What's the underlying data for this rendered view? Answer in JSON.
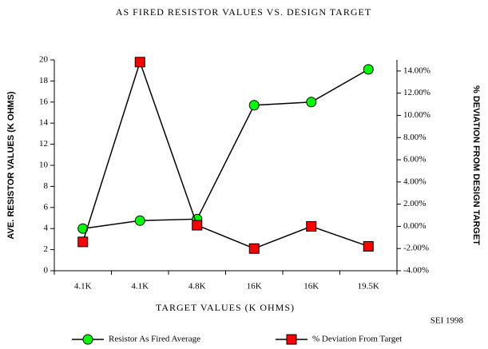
{
  "chart_data": {
    "type": "line",
    "title": "AS FIRED RESISTOR VALUES VS. DESIGN TARGET",
    "x_label": "TARGET VALUES (K OHMS)",
    "y_label": "AVE. RESISTOR VALUES (K OHMS)",
    "y2_label": "% DEVIATION FROM DESIGN TARGET",
    "annotation": "SEI 1998",
    "categories": [
      "4.1K",
      "4.1K",
      "4.8K",
      "16K",
      "16K",
      "19.5K"
    ],
    "series": [
      {
        "name": "Resistor As Fired Average",
        "color": "#00ff00",
        "marker": "circle",
        "values": [
          4.0,
          4.75,
          4.9,
          15.7,
          16.0,
          19.1
        ]
      },
      {
        "name": "% Deviation From Target",
        "color": "#ff0000",
        "marker": "square",
        "axis": "y2",
        "values": [
          -1.4,
          14.8,
          0.1,
          -2.0,
          0.0,
          -1.8
        ]
      }
    ],
    "ylim": [
      0,
      20
    ],
    "yticks": [
      0,
      2,
      4,
      6,
      8,
      10,
      12,
      14,
      16,
      18,
      20
    ],
    "y2lim": [
      -4,
      15
    ],
    "y2ticks": [
      {
        "value": -4,
        "label": "-4.00%"
      },
      {
        "value": -2,
        "label": "-2.00%"
      },
      {
        "value": 0,
        "label": "0.00%"
      },
      {
        "value": 2,
        "label": "2.00%"
      },
      {
        "value": 4,
        "label": "4.00%"
      },
      {
        "value": 6,
        "label": "6.00%"
      },
      {
        "value": 8,
        "label": "8.00%"
      },
      {
        "value": 10,
        "label": "10.00%"
      },
      {
        "value": 12,
        "label": "12.00%"
      },
      {
        "value": 14,
        "label": "14.00%"
      }
    ],
    "grid": false,
    "legend": "bottom"
  }
}
